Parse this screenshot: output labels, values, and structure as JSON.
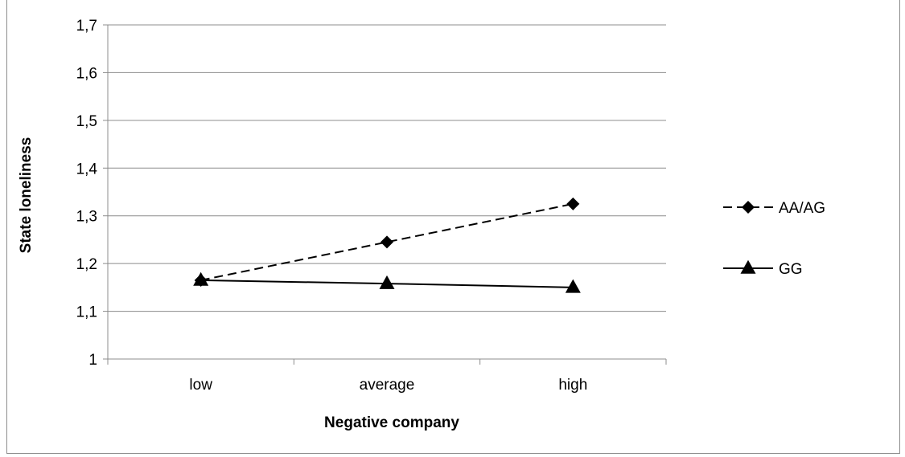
{
  "chart_data": {
    "type": "line",
    "categories": [
      "low",
      "average",
      "high"
    ],
    "series": [
      {
        "name": "AA/AG",
        "values": [
          1.165,
          1.245,
          1.325
        ],
        "line_style": "dashed",
        "marker": "diamond",
        "color": "#000000"
      },
      {
        "name": "GG",
        "values": [
          1.165,
          1.158,
          1.15
        ],
        "line_style": "solid",
        "marker": "triangle",
        "color": "#000000"
      }
    ],
    "title": "",
    "xlabel": "Negative company",
    "ylabel": "State loneliness",
    "ylim": [
      1,
      1.7
    ],
    "yticks": [
      "1",
      "1,1",
      "1,2",
      "1,3",
      "1,4",
      "1,5",
      "1,6",
      "1,7"
    ],
    "grid": true,
    "grid_color": "#8c8c8c",
    "legend_position": "right"
  }
}
